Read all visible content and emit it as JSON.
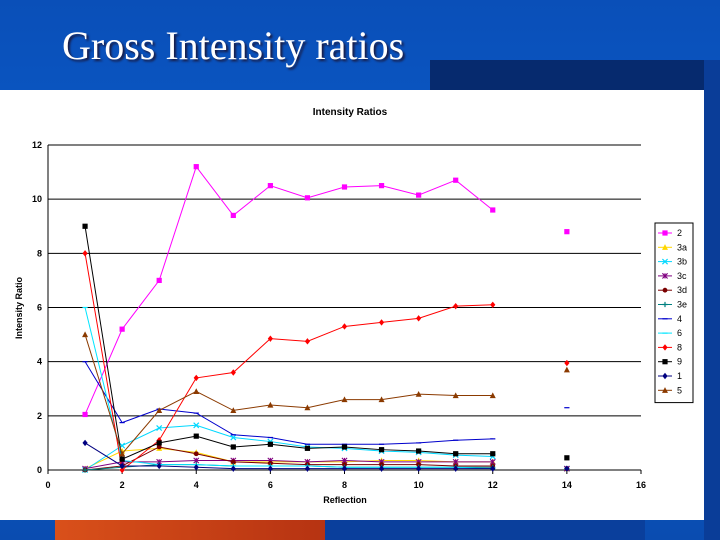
{
  "slide": {
    "title": "Gross Intensity ratios"
  },
  "chart_data": {
    "type": "line",
    "title": "Intensity Ratios",
    "xlabel": "Reflection",
    "ylabel": "Intensity Ratio",
    "xlim": [
      0,
      16
    ],
    "ylim": [
      0,
      12
    ],
    "xticks": [
      0,
      2,
      4,
      6,
      8,
      10,
      12,
      14,
      16
    ],
    "yticks": [
      0,
      2,
      4,
      6,
      8,
      10,
      12
    ],
    "grid": "horizontal",
    "legend_position": "right",
    "series": [
      {
        "name": "2",
        "color": "#ff00ff",
        "marker": "square",
        "x": [
          1,
          2,
          3,
          4,
          5,
          6,
          7,
          8,
          9,
          10,
          11,
          12,
          14
        ],
        "y": [
          2.05,
          5.2,
          7.0,
          11.2,
          9.4,
          10.5,
          10.05,
          10.45,
          10.5,
          10.15,
          10.7,
          9.6,
          8.8
        ]
      },
      {
        "name": "3a",
        "color": "#ffd700",
        "marker": "triangle",
        "x": [
          1,
          2,
          3,
          4,
          5,
          6,
          7,
          8,
          9,
          10,
          11,
          12,
          14
        ],
        "y": [
          0.05,
          0.7,
          0.8,
          0.65,
          0.3,
          0.3,
          0.3,
          0.3,
          0.35,
          0.35,
          0.3,
          0.3,
          0.05
        ]
      },
      {
        "name": "3b",
        "color": "#00d8ff",
        "marker": "x",
        "x": [
          1,
          2,
          3,
          4,
          5,
          6,
          7,
          8,
          9,
          10,
          11,
          12,
          14
        ],
        "y": [
          0.0,
          0.9,
          1.55,
          1.65,
          1.2,
          1.05,
          0.85,
          0.8,
          0.7,
          0.65,
          0.55,
          0.5,
          0.05
        ]
      },
      {
        "name": "3c",
        "color": "#800080",
        "marker": "star",
        "x": [
          1,
          2,
          3,
          4,
          5,
          6,
          7,
          8,
          9,
          10,
          11,
          12,
          14
        ],
        "y": [
          0.05,
          0.3,
          0.3,
          0.35,
          0.35,
          0.35,
          0.3,
          0.35,
          0.3,
          0.3,
          0.3,
          0.3,
          0.05
        ]
      },
      {
        "name": "3d",
        "color": "#7a0000",
        "marker": "circle",
        "x": [
          1,
          2,
          3,
          4,
          5,
          6,
          7,
          8,
          9,
          10,
          11,
          12,
          14
        ],
        "y": [
          0.0,
          0.15,
          0.85,
          0.6,
          0.3,
          0.25,
          0.2,
          0.2,
          0.2,
          0.2,
          0.15,
          0.15,
          0.05
        ]
      },
      {
        "name": "3e",
        "color": "#008080",
        "marker": "plus",
        "x": [
          1,
          2,
          3,
          4,
          5,
          6,
          7,
          8,
          9,
          10,
          11,
          12,
          14
        ],
        "y": [
          0.0,
          0.1,
          0.2,
          0.2,
          0.15,
          0.15,
          0.15,
          0.1,
          0.1,
          0.1,
          0.1,
          0.1,
          0.05
        ]
      },
      {
        "name": "4",
        "color": "#0000cc",
        "marker": "dash",
        "x": [
          1,
          2,
          3,
          4,
          5,
          6,
          7,
          8,
          9,
          10,
          11,
          12,
          14
        ],
        "y": [
          4.0,
          1.75,
          2.25,
          2.1,
          1.3,
          1.2,
          0.95,
          0.95,
          0.95,
          1.0,
          1.1,
          1.15,
          2.3
        ]
      },
      {
        "name": "6",
        "color": "#00e5ff",
        "marker": "dash",
        "x": [
          1,
          2,
          3,
          4,
          5,
          6,
          7,
          8,
          9,
          10,
          11,
          12,
          14
        ],
        "y": [
          6.0,
          0.35,
          0.2,
          0.2,
          0.15,
          0.15,
          0.15,
          0.1,
          0.1,
          0.1,
          0.1,
          0.05,
          0.05
        ]
      },
      {
        "name": "8",
        "color": "#ff0000",
        "marker": "diamond",
        "x": [
          1,
          2,
          3,
          4,
          5,
          6,
          7,
          8,
          9,
          10,
          11,
          12,
          14
        ],
        "y": [
          8.0,
          0.0,
          1.1,
          3.4,
          3.6,
          4.85,
          4.75,
          5.3,
          5.45,
          5.6,
          6.05,
          6.1,
          3.95
        ]
      },
      {
        "name": "9",
        "color": "#000000",
        "marker": "square",
        "x": [
          1,
          2,
          3,
          4,
          5,
          6,
          7,
          8,
          9,
          10,
          11,
          12,
          14
        ],
        "y": [
          9.0,
          0.4,
          1.0,
          1.25,
          0.85,
          0.95,
          0.8,
          0.85,
          0.75,
          0.7,
          0.6,
          0.6,
          0.45
        ]
      },
      {
        "name": "1",
        "color": "#000080",
        "marker": "diamond",
        "x": [
          1,
          2,
          3,
          4,
          5,
          6,
          7,
          8,
          9,
          10,
          11,
          12,
          14
        ],
        "y": [
          1.0,
          0.15,
          0.15,
          0.1,
          0.05,
          0.05,
          0.05,
          0.05,
          0.05,
          0.05,
          0.05,
          0.05,
          0.05
        ]
      },
      {
        "name": "5",
        "color": "#8b3a00",
        "marker": "triangle",
        "x": [
          1,
          2,
          3,
          4,
          5,
          6,
          7,
          8,
          9,
          10,
          11,
          12,
          14
        ],
        "y": [
          5.0,
          0.6,
          2.2,
          2.9,
          2.2,
          2.4,
          2.3,
          2.6,
          2.6,
          2.8,
          2.75,
          2.75,
          3.7
        ]
      }
    ]
  }
}
